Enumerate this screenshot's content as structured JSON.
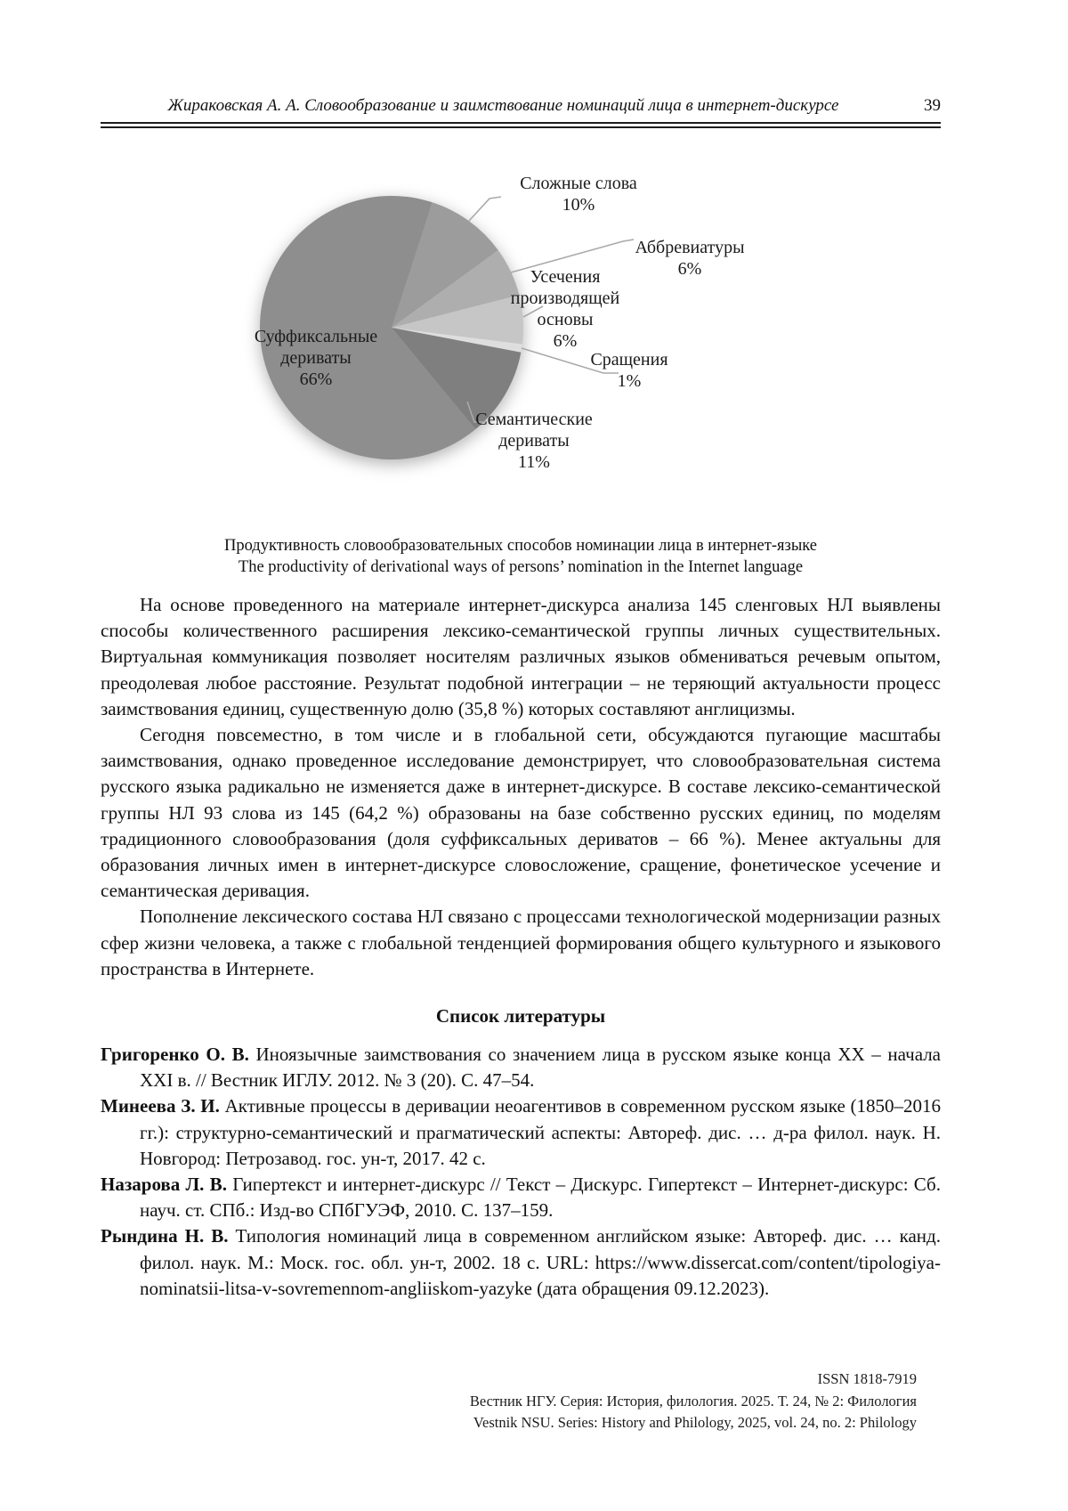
{
  "header": {
    "running_title": "Жираковская А. А. Словообразование и заимствование номинаций лица в интернет-дискурсе",
    "page_number": "39"
  },
  "chart_data": {
    "type": "pie",
    "start_angle_deg": 18,
    "legend_position": "callout-labels",
    "slices": [
      {
        "label": "Сложные слова",
        "pct_label": "10%",
        "value": 10,
        "color": "#9c9c9c"
      },
      {
        "label": "Аббревиатуры",
        "pct_label": "6%",
        "value": 6,
        "color": "#aeaeae"
      },
      {
        "label": "Усечения производящей основы",
        "pct_label": "6%",
        "value": 6,
        "color": "#c6c6c6"
      },
      {
        "label": "Сращения",
        "pct_label": "1%",
        "value": 1,
        "color": "#dedede"
      },
      {
        "label": "Семантические дериваты",
        "pct_label": "11%",
        "value": 11,
        "color": "#7f7f7f"
      },
      {
        "label": "Суффиксальные дериваты",
        "pct_label": "66%",
        "value": 66,
        "color": "#8e8e8e"
      }
    ],
    "title": "Продуктивность словообразовательных способов номинации лица в интернет-языке",
    "title_en": "The productivity of derivational ways of persons’ nomination in the Internet language"
  },
  "caption": {
    "line_ru": "Продуктивность словообразовательных способов номинации лица в интернет-языке",
    "line_en": "The productivity of derivational ways of persons’ nomination in the Internet language"
  },
  "body": {
    "paragraphs": [
      "На основе проведенного на материале интернет-дискурса анализа 145 сленговых НЛ выявлены способы количественного расширения лексико-семантической группы личных существительных. Виртуальная коммуникация позволяет носителям различных языков обмениваться речевым опытом, преодолевая любое расстояние. Результат подобной интеграции – не теряющий актуальности процесс заимствования единиц, существенную долю (35,8 %) которых составляют англицизмы.",
      "Сегодня повсеместно, в том числе и в глобальной сети, обсуждаются пугающие масштабы заимствования, однако проведенное исследование демонстрирует, что словообразовательная система русского языка радикально не изменяется даже в интернет-дискурсе. В составе лексико-семантической группы НЛ 93 слова из 145 (64,2 %) образованы на базе собственно русских единиц, по моделям традиционного словообразования (доля суффиксальных дериватов – 66 %). Менее актуальны для образования личных имен в интернет-дискурсе словосложение, сращение, фонетическое усечение и семантическая деривация.",
      "Пополнение лексического состава НЛ связано с процессами технологической модернизации разных сфер жизни человека, а также с глобальной тенденцией формирования общего культурного и языкового пространства в Интернете."
    ]
  },
  "references": {
    "heading": "Список литературы",
    "items": [
      {
        "author": "Григоренко О. В.",
        "text": " Иноязычные заимствования со значением лица в русском языке конца ХХ – начала XXI в. // Вестник ИГЛУ. 2012. № 3 (20). С. 47–54."
      },
      {
        "author": "Минеева З. И.",
        "text": " Активные процессы в деривации неоагентивов в современном русском языке (1850–2016 гг.): структурно-семантический и прагматический аспекты: Автореф. дис. … д-ра филол. наук. Н. Новгород: Петрозавод. гос. ун-т, 2017. 42 с."
      },
      {
        "author": "Назарова Л. В.",
        "text": " Гипертекст и интернет-дискурс // Текст – Дискурс. Гипертекст – Интернет-дискурс: Сб. науч. ст. СПб.: Изд-во СПбГУЭФ, 2010. С. 137–159."
      },
      {
        "author": "Рындина Н. В.",
        "text": " Типология номинаций лица в современном английском языке: Автореф. дис. … канд. филол. наук. М.: Моск. гос. обл. ун-т, 2002. 18 с. URL: https://www.dissercat.com/content/tipologiya-nominatsii-litsa-v-sovremennom-angliiskom-yazyke (дата обращения 09.12.2023)."
      }
    ]
  },
  "footer": {
    "issn": "ISSN 1818-7919",
    "line_ru": "Вестник НГУ. Серия: История, филология. 2025. Т. 24, № 2: Филология",
    "line_en": "Vestnik NSU. Series: History and Philology, 2025, vol. 24, no. 2: Philology"
  }
}
